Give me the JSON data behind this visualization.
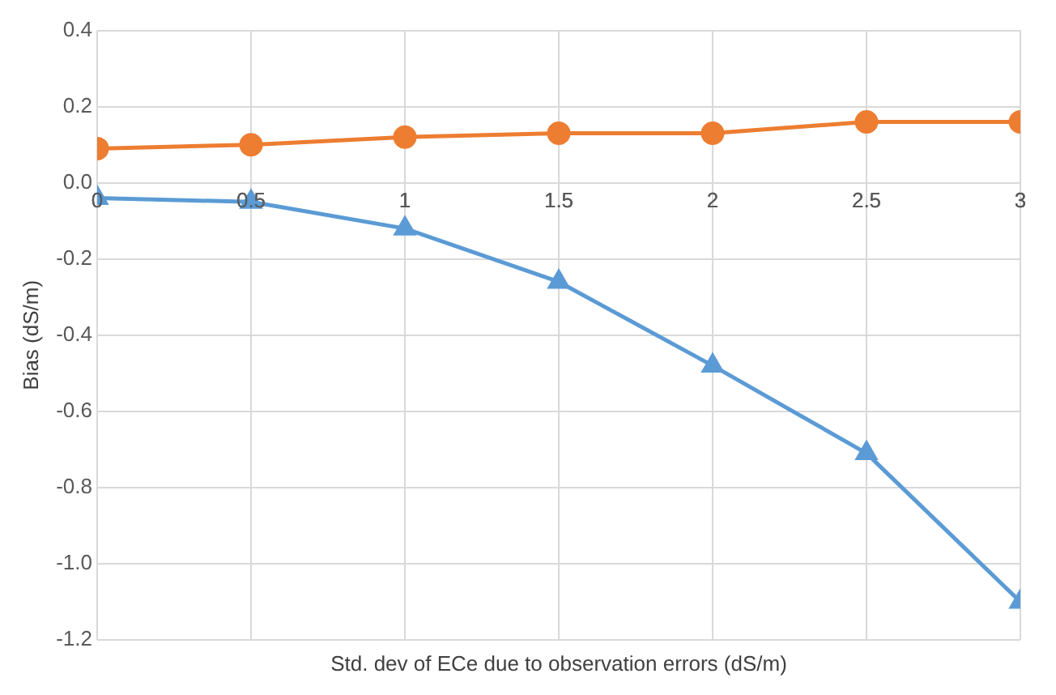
{
  "chart_data": {
    "type": "line",
    "xlabel": "Std. dev of ECe due to observation errors (dS/m)",
    "ylabel": "Bias (dS/m)",
    "x": [
      0,
      0.5,
      1,
      1.5,
      2,
      2.5,
      3
    ],
    "series": [
      {
        "color": "#ed7d31",
        "marker": "circle",
        "values": [
          0.09,
          0.1,
          0.12,
          0.13,
          0.13,
          0.16,
          0.16
        ]
      },
      {
        "color": "#5b9bd5",
        "marker": "triangle",
        "values": [
          -0.04,
          -0.05,
          -0.12,
          -0.26,
          -0.48,
          -0.71,
          -1.1
        ]
      }
    ],
    "xlim": [
      0,
      3
    ],
    "xticks": [
      0,
      0.5,
      1,
      1.5,
      2,
      2.5,
      3
    ],
    "ylim": [
      -1.2,
      0.4
    ],
    "yticks": [
      {
        "value": -1.2,
        "label": "-1.2"
      },
      {
        "value": -1.0,
        "label": "-1.0"
      },
      {
        "value": -0.8,
        "label": "-0.8"
      },
      {
        "value": -0.6,
        "label": "-0.6"
      },
      {
        "value": -0.4,
        "label": "-0.4"
      },
      {
        "value": -0.2,
        "label": "-0.2"
      },
      {
        "value": 0,
        "label": "0.0"
      },
      {
        "value": 0.2,
        "label": "0.2"
      },
      {
        "value": 0.4,
        "label": "0.4"
      }
    ],
    "grid": true,
    "legend": false,
    "line_style": "solid"
  }
}
